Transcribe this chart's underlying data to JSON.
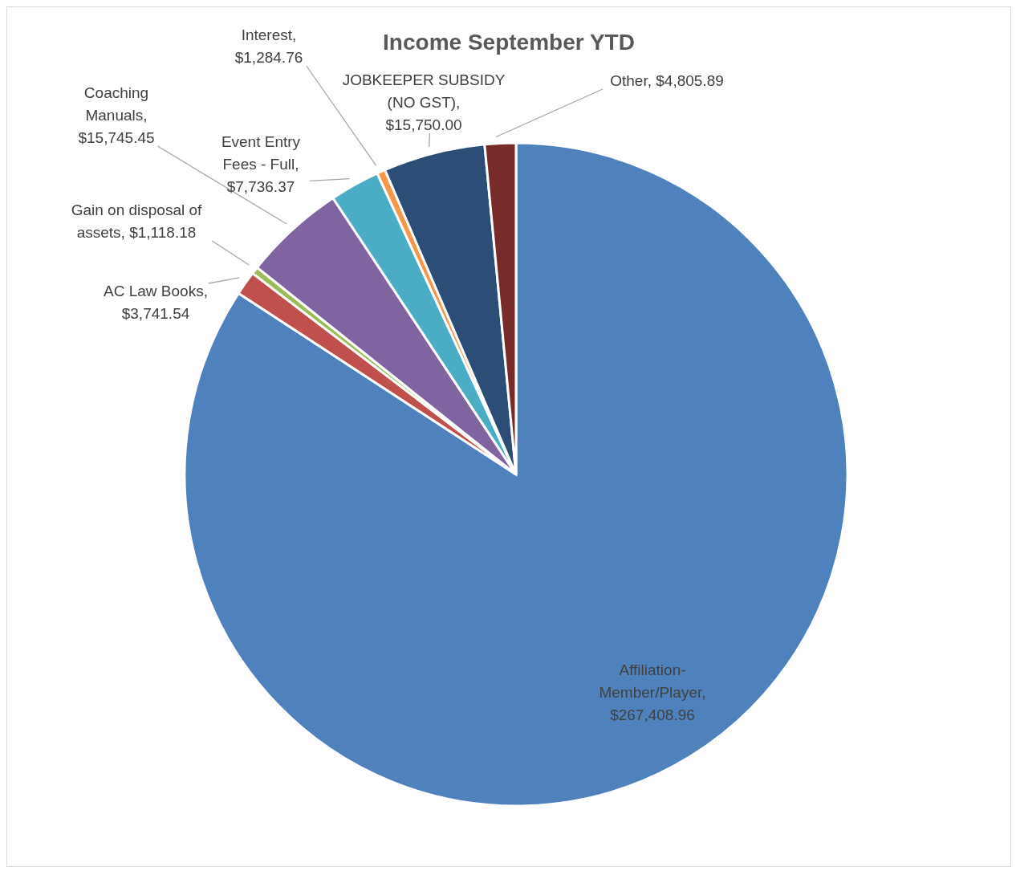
{
  "chart_data": {
    "type": "pie",
    "title": "Income September YTD",
    "categories": [
      "Affiliation-Member/Player",
      "AC Law Books",
      "Gain on disposal of assets",
      "Coaching Manuals",
      "Event Entry Fees - Full",
      "Interest",
      "JOBKEEPER SUBSIDY (NO GST)",
      "Other"
    ],
    "values": [
      267408.96,
      3741.54,
      1118.18,
      15745.45,
      7736.37,
      1284.76,
      15750.0,
      4805.89
    ],
    "value_labels": [
      ", $267,408.96",
      ", $3,741.54",
      ", $1,118.18",
      ", $15,745.45",
      ", $7,736.37",
      ", $1,284.76",
      ", $15,750.00",
      ", $4,805.89"
    ],
    "colors": [
      "#4f81bd",
      "#c0504d",
      "#9bbb59",
      "#8064a2",
      "#4bacc6",
      "#f79646",
      "#2c4d75",
      "#772c2a"
    ],
    "legend": false
  }
}
